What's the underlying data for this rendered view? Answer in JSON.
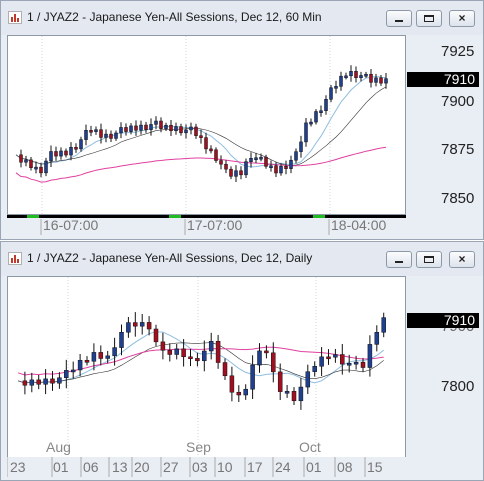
{
  "windows": [
    {
      "title": "1 / JYAZ2 - Japanese Yen-All Sessions, Dec 12, 60 Min",
      "price_labels": [
        "7925",
        "7900",
        "7875",
        "7850"
      ],
      "current_price": "7910",
      "time_labels": [
        "16-07:00",
        "17-07:00",
        "18-04:00"
      ],
      "chart_data": {
        "type": "candlestick",
        "interval": "60 Min",
        "indicators": [
          "moving-average-short",
          "moving-average-long"
        ],
        "colors": {
          "up": "#1f3f8f",
          "down": "#a01020",
          "ma_short": "#8fbde0",
          "ma_long": "#e040a0",
          "ma_mid": "#333333"
        }
      }
    },
    {
      "title": "1 / JYAZ2 - Japanese Yen-All Sessions, Dec 12, Daily",
      "price_labels": [
        "7900",
        "7800"
      ],
      "current_price": "7910",
      "month_labels": [
        "Aug",
        "Sep",
        "Oct"
      ],
      "day_labels": [
        "23",
        "01",
        "06",
        "13",
        "20",
        "27",
        "03",
        "10",
        "17",
        "24",
        "01",
        "08",
        "15"
      ],
      "chart_data": {
        "type": "candlestick",
        "interval": "Daily",
        "indicators": [
          "moving-average-short",
          "moving-average-long"
        ],
        "colors": {
          "up": "#1f3f8f",
          "down": "#a01020",
          "ma_short": "#8fbde0",
          "ma_long": "#e040a0",
          "ma_mid": "#333333"
        }
      }
    }
  ],
  "buttons": {
    "minimize": "minimize",
    "maximize": "maximize",
    "close": "×"
  }
}
